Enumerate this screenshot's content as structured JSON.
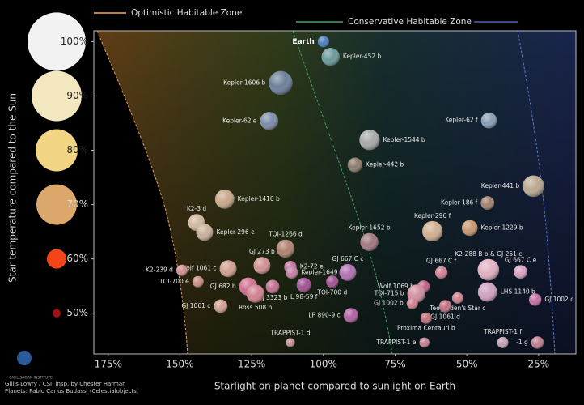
{
  "chart_data": {
    "type": "bubble",
    "x_label": "Starlight on planet compared to sunlight on Earth",
    "y_label": "Star temperature compared to the Sun",
    "zones": [
      "Optimistic Habitable Zone",
      "Conservative Habitable Zone"
    ],
    "credits": [
      "Gillis Lowry / CSI, insp. by Chester Harman",
      "Planets: Pablo Carlos Budassi (Celestialobjects)"
    ],
    "logo": "CARL SAGAN INSTITUTE",
    "xlim": [
      180,
      12
    ],
    "ylim": [
      42.5,
      102
    ],
    "xticks": [
      {
        "value": 175,
        "label": "175%"
      },
      {
        "value": 150,
        "label": "150%"
      },
      {
        "value": 125,
        "label": "125%"
      },
      {
        "value": 100,
        "label": "100%"
      },
      {
        "value": 75,
        "label": "75%"
      },
      {
        "value": 50,
        "label": "50%"
      },
      {
        "value": 25,
        "label": "25%"
      }
    ],
    "yticks": [
      {
        "value": 100,
        "label": "100%"
      },
      {
        "value": 90,
        "label": "90%"
      },
      {
        "value": 80,
        "label": "80%"
      },
      {
        "value": 70,
        "label": "70%"
      },
      {
        "value": 60,
        "label": "60%"
      },
      {
        "value": 50,
        "label": "50%"
      }
    ],
    "labels": [
      "Earth",
      "Kepler-452 b",
      "Kepler-1606 b",
      "Kepler-62 e",
      "Kepler-62 f",
      "Kepler-1544 b",
      "Kepler-442 b",
      "Kepler-441 b",
      "Kepler-1410 b",
      "Kepler-186 f",
      "K2-3 d",
      "Kepler-296 e",
      "Kepler-296 f",
      "Kepler-1229 b",
      "Kepler-1652 b",
      "TOI-1266 d",
      "K2-288 B b & GJ 251 c",
      "GJ 667 C f",
      "GJ 667 C e",
      "GJ 273 b",
      "Wolf 1061 c",
      "K2-72 e",
      "Kepler-1649 c",
      "K2-239 d",
      "GJ 667 C c",
      "TOI-700 e",
      "GJ 682 b",
      "GJ 3323 b",
      "L 98-59 f",
      "TOI-700 d",
      "Wolf 1069 b",
      "TOI-715 b",
      "LHS 1140 b",
      "Ross 508 b",
      "GJ 1061 c",
      "Teegarden's Star c",
      "GJ 1061 d",
      "Proxima Centauri b",
      "GJ 1002 b",
      "GJ 1002 c",
      "LP 890-9 c",
      "TRAPPIST-1 d",
      "TRAPPIST-1 e",
      "TRAPPIST-1 f",
      "-1 g"
    ],
    "x": [
      100,
      97.5,
      114.9,
      118.9,
      42.3,
      83.9,
      89,
      26.8,
      134.4,
      42.8,
      144.2,
      141.4,
      62,
      49,
      84,
      113.2,
      42.5,
      58.9,
      31.3,
      121.4,
      133.2,
      111.5,
      111,
      149.3,
      91.5,
      143.7,
      126.2,
      117.7,
      106.8,
      96.9,
      65.1,
      67.6,
      42.8,
      123.7,
      135.8,
      53.2,
      57.5,
      64.2,
      69,
      26.2,
      90.4,
      111.5,
      64.8,
      37.5,
      25.4
    ],
    "values": [
      100,
      97.2,
      92.4,
      85.4,
      85.5,
      81.9,
      77.3,
      73.4,
      71,
      70.3,
      66.7,
      64.9,
      65.1,
      65.7,
      63.1,
      61.9,
      58,
      57.5,
      57.6,
      58.8,
      58.2,
      58.5,
      57.5,
      57.9,
      57.5,
      55.8,
      54.9,
      54.9,
      55.2,
      55.8,
      54.9,
      53.6,
      53.9,
      53.6,
      51.3,
      52.8,
      51.3,
      49.1,
      51.8,
      52.5,
      49.6,
      44.6,
      44.6,
      44.6,
      44.6
    ],
    "sizes": [
      1.0,
      1.6,
      2.1,
      1.6,
      1.4,
      1.8,
      1.3,
      1.9,
      1.7,
      1.2,
      1.5,
      1.5,
      1.8,
      1.4,
      1.6,
      1.6,
      1.9,
      1.1,
      1.2,
      1.5,
      1.5,
      1.1,
      1.1,
      1.0,
      1.5,
      1.0,
      1.6,
      1.2,
      1.3,
      1.1,
      1.1,
      1.6,
      1.7,
      1.6,
      1.2,
      1.0,
      1.1,
      1.0,
      1.0,
      1.1,
      1.3,
      0.8,
      0.9,
      1.0,
      1.1
    ],
    "colors": [
      "#4a7fc0",
      "#6a9a9a",
      "#6c7f9a",
      "#7c8ca8",
      "#8a9cb5",
      "#a8a8a8",
      "#8a7a6a",
      "#b8a890",
      "#c8a888",
      "#a08070",
      "#d0b8a0",
      "#c8b098",
      "#d0b090",
      "#c89870",
      "#a07880",
      "#b08070",
      "#e0b0c0",
      "#d08090",
      "#d8a0c0",
      "#d09090",
      "#d0a090",
      "#c070a0",
      "#c080a0",
      "#d09090",
      "#b070b0",
      "#c89080",
      "#d07090",
      "#c07090",
      "#a05090",
      "#a05090",
      "#c06080",
      "#d090a0",
      "#d0a0c0",
      "#d08090",
      "#d0a090",
      "#d08090",
      "#c07080",
      "#c07080",
      "#d08090",
      "#c070a0",
      "#b060a0",
      "#c09090",
      "#c08090",
      "#c0a0b0",
      "#c08090"
    ]
  }
}
